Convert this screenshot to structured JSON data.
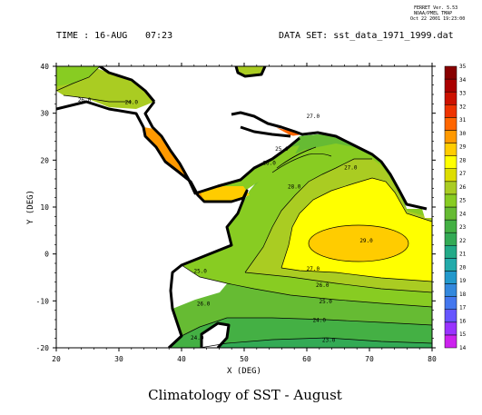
{
  "header": {
    "ferret_version": "FERRET Ver. 5.53",
    "ferret_org": "NOAA/PMEL TMAP",
    "ferret_date": "Oct 22 2001 19:23:00",
    "time_label": "TIME : 16-AUG",
    "time_value": "07:23",
    "dataset_label": "DATA SET: sst_data_1971_1999.dat"
  },
  "caption": "Climatology of SST - August",
  "colors": {
    "land": "#ffffff",
    "coast": "#000000",
    "contour_line": "#000000"
  },
  "chart_data": {
    "type": "heatmap",
    "title": "",
    "xlabel": "X (DEG)",
    "ylabel": "Y (DEG)",
    "xlim": [
      20,
      80
    ],
    "ylim": [
      -20,
      40
    ],
    "xticks": [
      "20",
      "30",
      "40",
      "50",
      "60",
      "70",
      "80"
    ],
    "yticks": [
      "-20",
      "-10",
      "0",
      "10",
      "20",
      "30",
      "40"
    ],
    "grid": false,
    "legend": "right",
    "colorbar": {
      "values": [
        14,
        15,
        16,
        17,
        18,
        19,
        20,
        21,
        22,
        23,
        24,
        25,
        26,
        27,
        28,
        29,
        30,
        31,
        32,
        33,
        34,
        35
      ],
      "labels": [
        "14",
        "15",
        "16",
        "17",
        "18",
        "19",
        "20",
        "21",
        "22",
        "23",
        "24",
        "25",
        "26",
        "27",
        "28",
        "29",
        "30",
        "31",
        "32",
        "33",
        "34",
        "35"
      ],
      "colors": [
        "#cc22ee",
        "#9933ff",
        "#6655ff",
        "#4477ee",
        "#3388dd",
        "#2299cc",
        "#22aaaa",
        "#22aa88",
        "#33aa55",
        "#44b044",
        "#66bb33",
        "#88cc22",
        "#aacc22",
        "#dddd00",
        "#ffff00",
        "#ffcc00",
        "#ff9900",
        "#ff6600",
        "#ee3300",
        "#cc1100",
        "#aa0000",
        "#880000"
      ]
    },
    "contour_labels": [
      {
        "text": "29.0",
        "x": 69.5,
        "y": 2.5
      },
      {
        "text": "28.0",
        "x": 58.0,
        "y": 14.0
      },
      {
        "text": "27.0",
        "x": 67.0,
        "y": 18.0
      },
      {
        "text": "27.0",
        "x": 61.0,
        "y": -3.5
      },
      {
        "text": "26.0",
        "x": 62.5,
        "y": -7.0
      },
      {
        "text": "25.0",
        "x": 63.0,
        "y": -10.5
      },
      {
        "text": "24.0",
        "x": 62.0,
        "y": -14.5
      },
      {
        "text": "23.0",
        "x": 63.5,
        "y": -18.7
      },
      {
        "text": "24.0",
        "x": 42.5,
        "y": -18.3
      },
      {
        "text": "25.0",
        "x": 43.0,
        "y": -4.0
      },
      {
        "text": "26.0",
        "x": 43.5,
        "y": -11.0
      },
      {
        "text": "25.0",
        "x": 56.0,
        "y": 22.0
      },
      {
        "text": "26.0",
        "x": 54.0,
        "y": 19.0
      },
      {
        "text": "27.0",
        "x": 61.0,
        "y": 29.0
      },
      {
        "text": "26.0",
        "x": 24.5,
        "y": 32.5
      },
      {
        "text": "24.0",
        "x": 32.0,
        "y": 32.0
      }
    ]
  }
}
